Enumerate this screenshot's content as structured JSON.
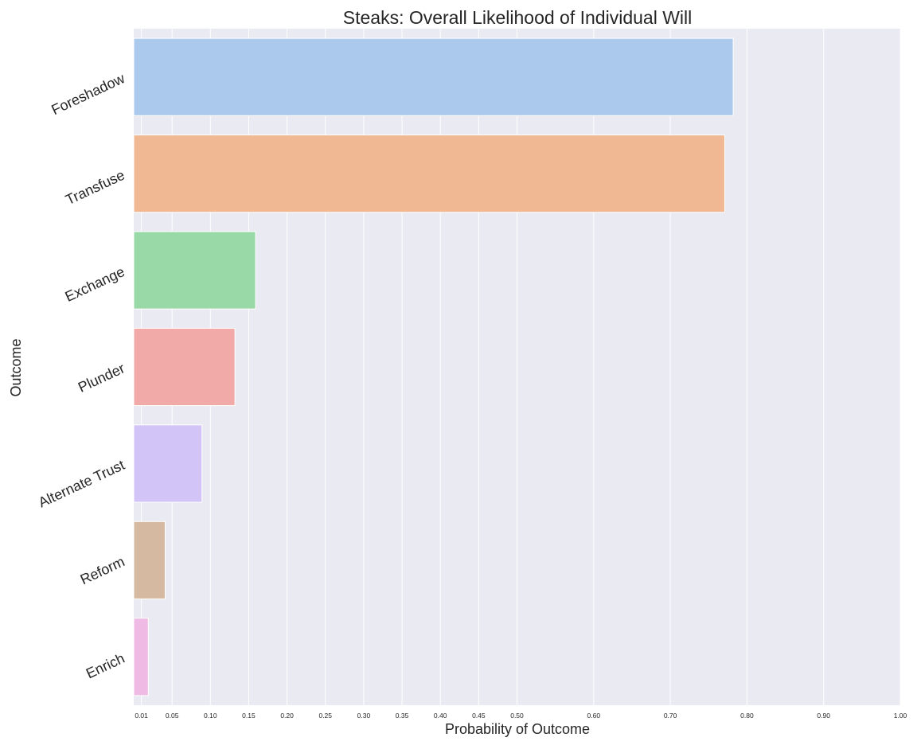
{
  "chart_data": {
    "type": "bar",
    "orientation": "horizontal",
    "title": "Steaks: Overall Likelihood of Individual Will",
    "xlabel": "Probability of Outcome",
    "ylabel": "Outcome",
    "categories": [
      "Foreshadow",
      "Transfuse",
      "Exchange",
      "Plunder",
      "Alternate Trust",
      "Reform",
      "Enrich"
    ],
    "values": [
      0.782,
      0.771,
      0.159,
      0.132,
      0.089,
      0.041,
      0.019
    ],
    "colors": [
      "#abc9ec",
      "#f0b994",
      "#99d9a8",
      "#f2aaa8",
      "#d2c4f7",
      "#d5b9a0",
      "#efbae3"
    ],
    "xticks": [
      0.01,
      0.05,
      0.1,
      0.15,
      0.2,
      0.25,
      0.3,
      0.35,
      0.4,
      0.45,
      0.5,
      0.6,
      0.7,
      0.8,
      0.9,
      1.0
    ],
    "xtick_labels": [
      "0.01",
      "0.05",
      "0.10",
      "0.15",
      "0.20",
      "0.25",
      "0.30",
      "0.35",
      "0.40",
      "0.45",
      "0.50",
      "0.60",
      "0.70",
      "0.80",
      "0.90",
      "1.00"
    ],
    "xlim": [
      0,
      1.0
    ],
    "grid": true,
    "background": "#eaeaf2",
    "gridline_color": "#ffffff"
  }
}
